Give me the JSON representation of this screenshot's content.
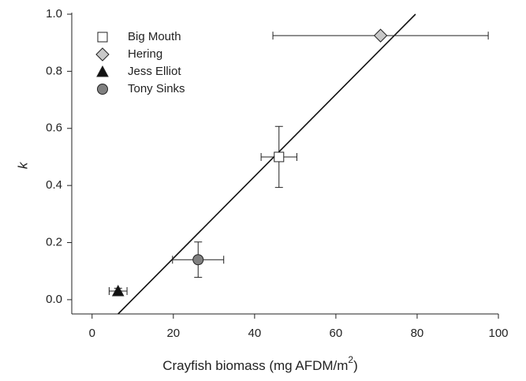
{
  "chart_data": {
    "type": "scatter",
    "xlabel": {
      "text": "Crayfish biomass (mg AFDM/m",
      "sup": "2",
      "end": ")"
    },
    "ylabel": "k",
    "xlim": [
      -5,
      100
    ],
    "ylim": [
      -0.05,
      1.0
    ],
    "xticks": [
      0,
      20,
      40,
      60,
      80,
      100
    ],
    "yticks": [
      {
        "value": 0,
        "label": "0.0"
      },
      0.2,
      0.4,
      0.6,
      0.8,
      {
        "value": 1,
        "label": "1.0"
      }
    ],
    "legend": "upper left",
    "series": [
      {
        "name": "Big Mouth",
        "marker": "square",
        "color": "#ffffff",
        "x": [
          46
        ],
        "values": [
          0.5
        ],
        "xerr": [
          4.4
        ],
        "yerr": [
          0.107
        ]
      },
      {
        "name": "Hering",
        "marker": "diamond",
        "color": "#c8c8c8",
        "x": [
          71
        ],
        "values": [
          0.925
        ],
        "xerr": [
          26.5
        ],
        "yerr": [
          null
        ]
      },
      {
        "name": "Jess Elliot",
        "marker": "triangle",
        "color": "#111111",
        "x": [
          6.4
        ],
        "values": [
          0.03
        ],
        "xerr": [
          2.2
        ],
        "yerr": [
          0.01
        ]
      },
      {
        "name": "Tony Sinks",
        "marker": "circle",
        "color": "#808080",
        "x": [
          26.1
        ],
        "values": [
          0.14
        ],
        "xerr": [
          6.3
        ],
        "yerr": [
          0.062
        ]
      }
    ],
    "fit_line": {
      "x": [
        6.4,
        79.6
      ],
      "values": [
        -0.05,
        1.0
      ]
    }
  }
}
